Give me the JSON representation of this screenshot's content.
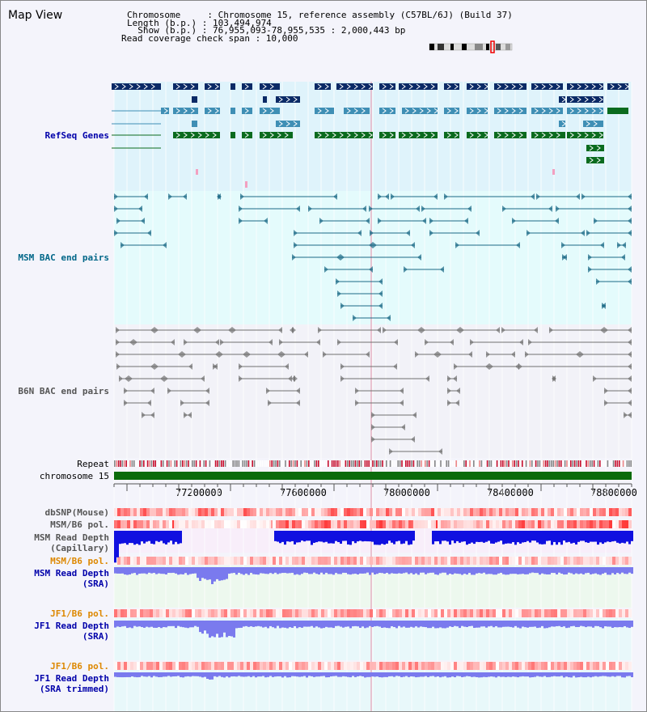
{
  "window": {
    "title": "Map View"
  },
  "header": {
    "lines": [
      "Chromosome     : Chromosome 15, reference assembly (C57BL/6J) (Build 37)",
      "Length (b.p.) : 103,494,974",
      "  Show (b.p.) : 76,955,093-78,955,535 : 2,000,443 bp",
      "Read coverage check span : 10,000"
    ]
  },
  "tracks": {
    "refseq": {
      "label": "RefSeq Genes",
      "color": "#0000aa"
    },
    "msm_bac": {
      "label": "MSM BAC end pairs",
      "color": "#006688"
    },
    "b6n_bac": {
      "label": "B6N BAC end pairs",
      "color": "#555555"
    },
    "repeat": {
      "label": "Repeat"
    },
    "chromosome": {
      "label": "chromosome 15",
      "color": "#006600"
    },
    "dbsnp": {
      "label": "dbSNP(Mouse)",
      "color": "#555555"
    },
    "msm_b6_pol_1": {
      "label": "MSM/B6 pol.",
      "color": "#555555"
    },
    "msm_read_depth_cap": {
      "label1": "MSM Read Depth",
      "label2": "(Capillary)",
      "color": "#555555"
    },
    "msm_b6_pol_2": {
      "label": "MSM/B6 pol.",
      "color": "#dd8800"
    },
    "msm_read_depth_sra": {
      "label1": "MSM Read Depth",
      "label2": "(SRA)",
      "color": "#0000aa"
    },
    "jf1_b6_pol_1": {
      "label": "JF1/B6 pol.",
      "color": "#dd8800"
    },
    "jf1_read_depth_sra": {
      "label1": "JF1 Read Depth",
      "label2": "(SRA)",
      "color": "#0000aa"
    },
    "jf1_b6_pol_2": {
      "label": "JF1/B6 pol.",
      "color": "#dd8800"
    },
    "jf1_read_depth_trim": {
      "label1": "JF1 Read Depth",
      "label2": "(SRA trimmed)",
      "color": "#0000aa"
    }
  },
  "scale": {
    "ticks": [
      "77200000",
      "77600000",
      "78000000",
      "78400000",
      "78800000"
    ],
    "start": 76955093,
    "end": 78955535
  },
  "colors": {
    "refseq_bg": "#dff3fb",
    "msm_bg": "#e4fbfc",
    "b6n_bg": "#f2f2f8",
    "gene_dark": "#0b2a66",
    "gene_mid": "#3f8fb5",
    "gene_green": "#0b6b1e",
    "bac_msm": "#1b6a86",
    "bac_b6n": "#707070",
    "chrom_bar": "#0b6b0b",
    "depth_blue": "#1010e0",
    "depth_light": "#7a7aee"
  }
}
